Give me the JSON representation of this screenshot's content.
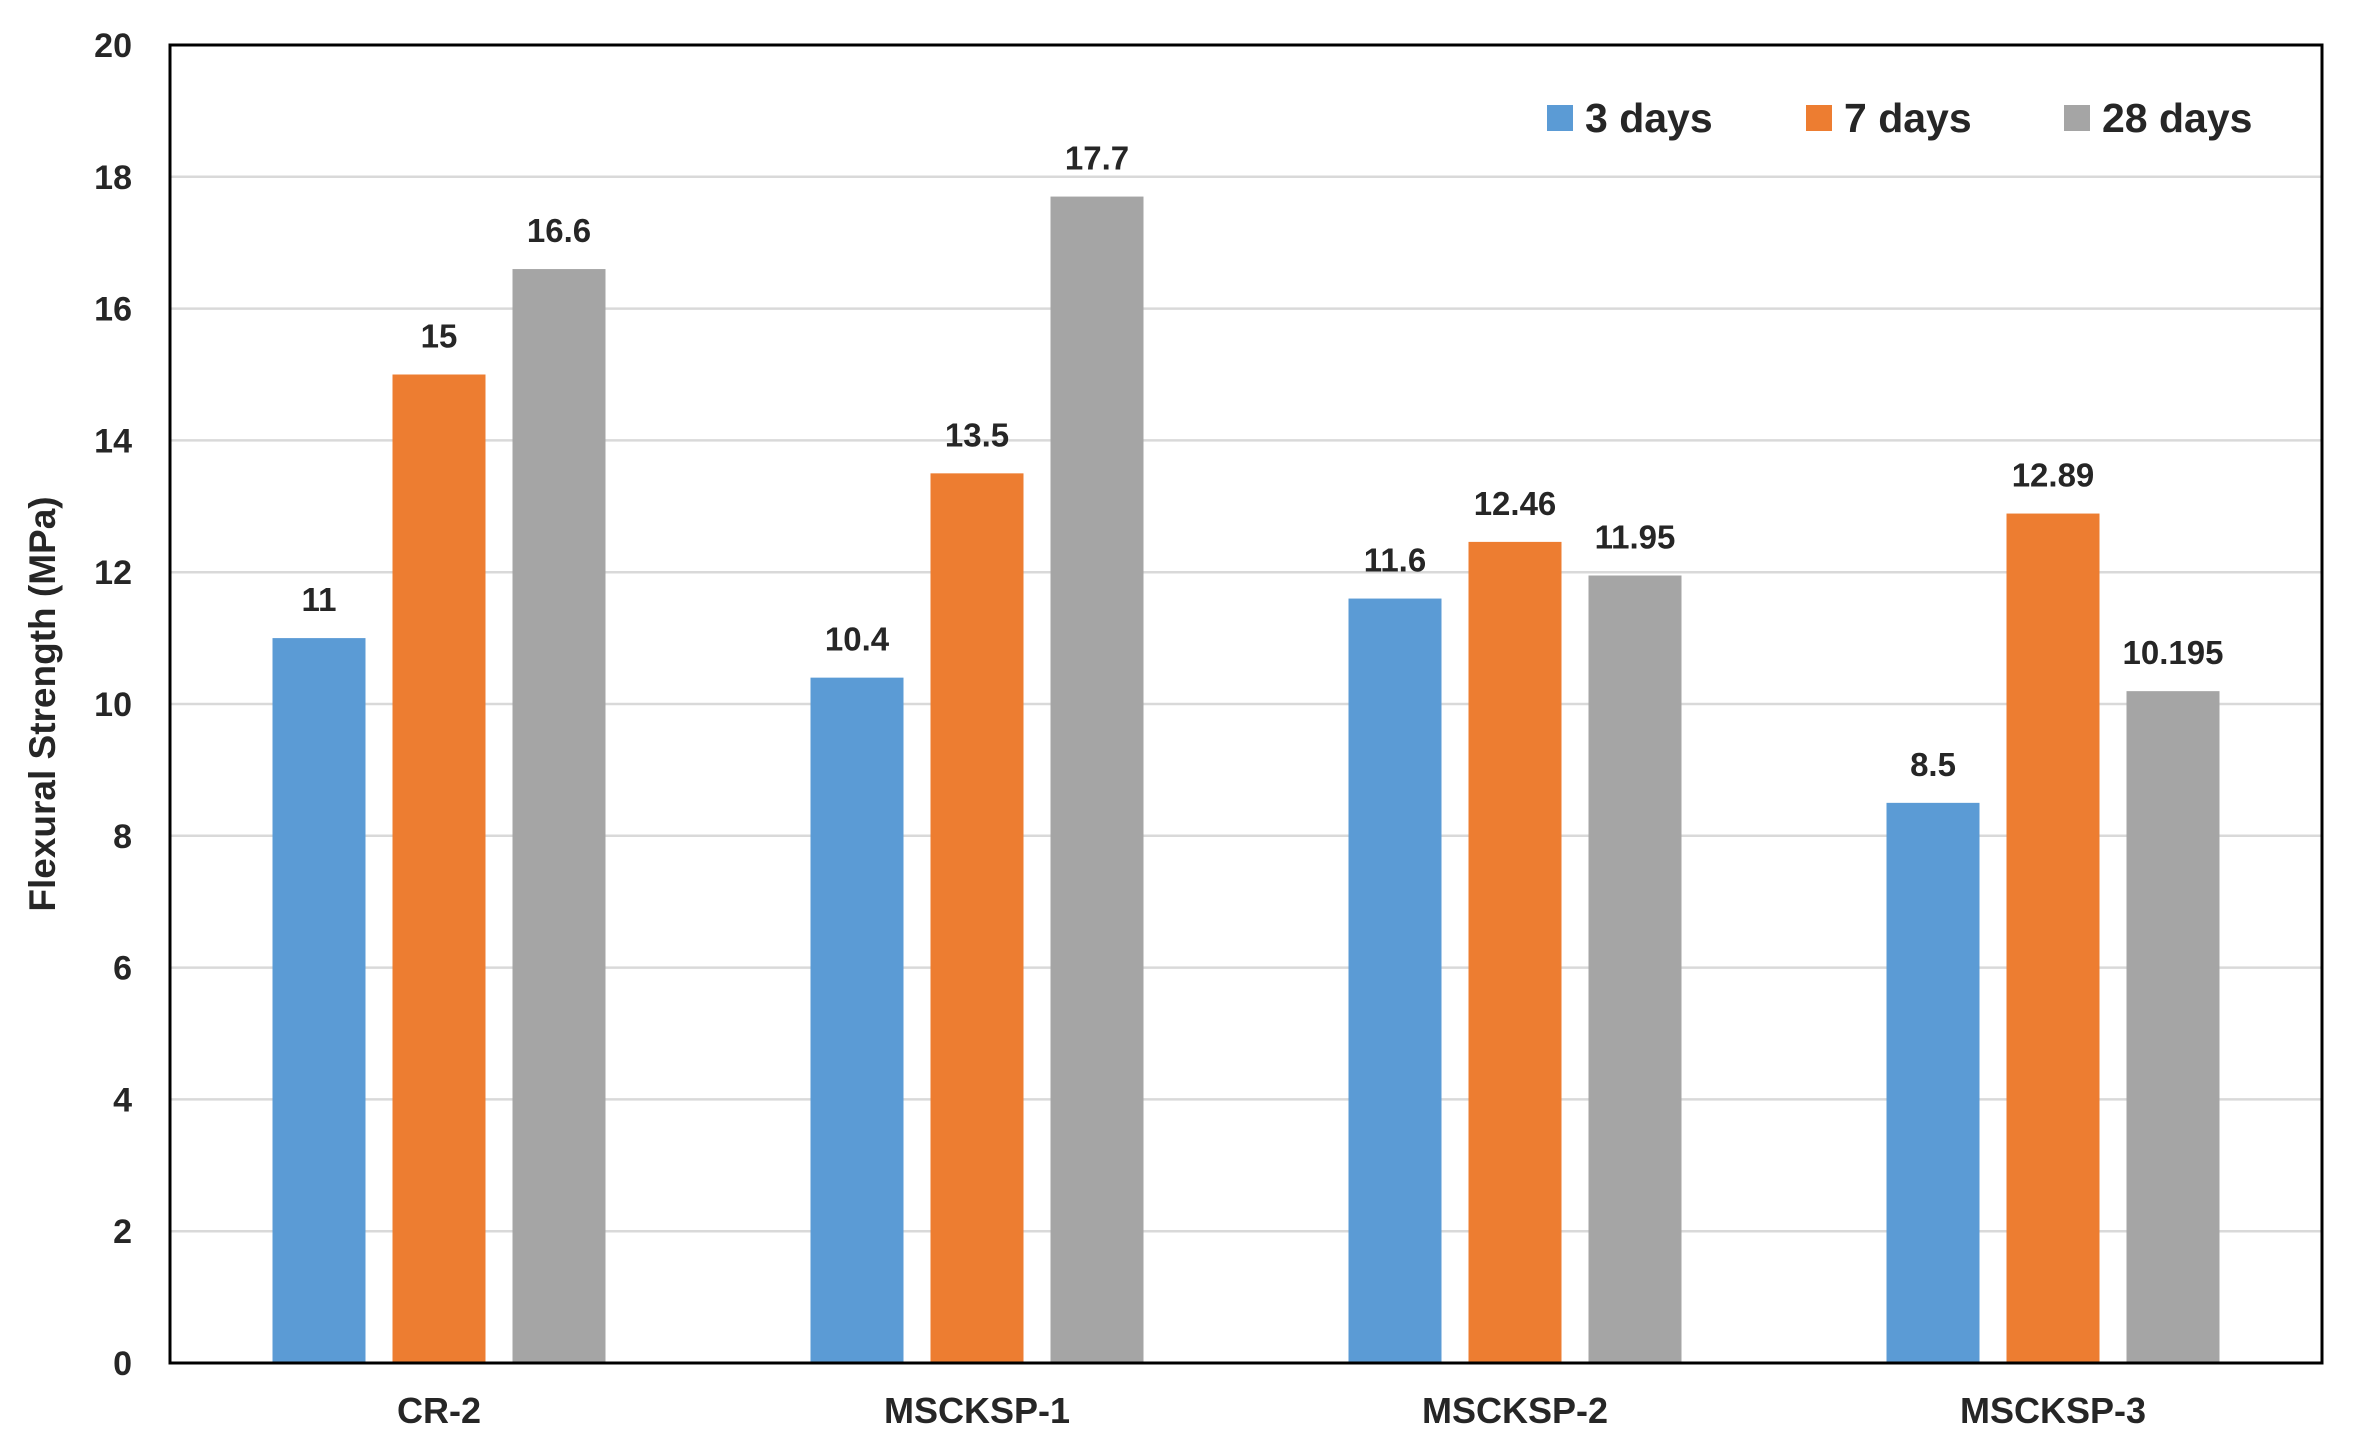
{
  "chart_data": {
    "type": "bar",
    "title": "",
    "xlabel": "",
    "ylabel": "Flexural Strength (MPa)",
    "ylim": [
      0,
      20
    ],
    "ytick_step": 2,
    "grid": true,
    "legend_position": "top-right",
    "categories": [
      "CR-2",
      "MSCKSP-1",
      "MSCKSP-2",
      "MSCKSP-3"
    ],
    "series": [
      {
        "name": "3 days",
        "color": "#5b9bd5",
        "values": [
          11,
          10.4,
          11.6,
          8.5
        ],
        "labels": [
          "11",
          "10.4",
          "11.6",
          "8.5"
        ]
      },
      {
        "name": "7 days",
        "color": "#ed7d31",
        "values": [
          15,
          13.5,
          12.46,
          12.89
        ],
        "labels": [
          "15",
          "13.5",
          "12.46",
          "12.89"
        ]
      },
      {
        "name": "28 days",
        "color": "#a5a5a5",
        "values": [
          16.6,
          17.7,
          11.95,
          10.195
        ],
        "labels": [
          "16.6",
          "17.7",
          "11.95",
          "10.195"
        ]
      }
    ]
  }
}
